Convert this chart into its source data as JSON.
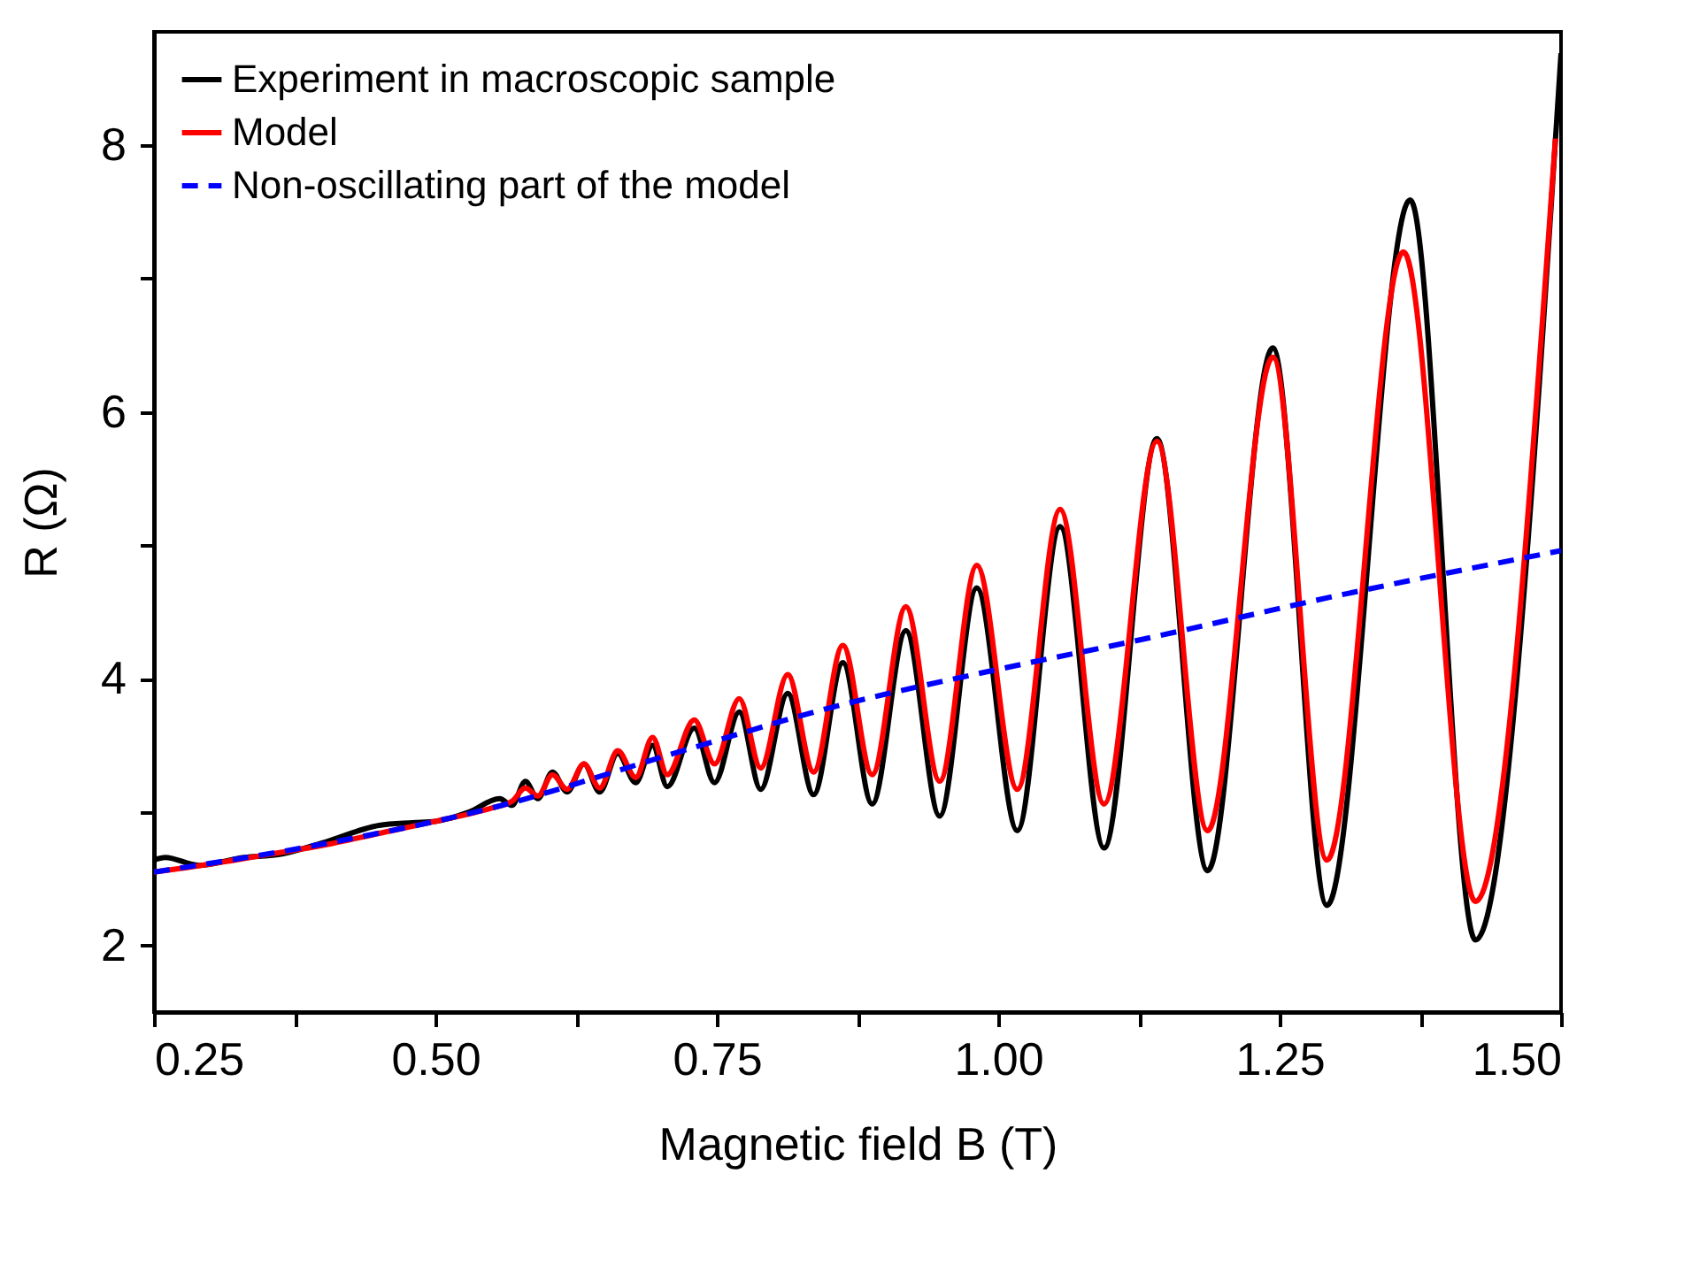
{
  "chart_data": {
    "type": "line",
    "xlabel": "Magnetic field B (T)",
    "ylabel": "R (Ω)",
    "xlim": [
      0.25,
      1.5
    ],
    "ylim": [
      1.5,
      8.85
    ],
    "xticks": [
      0.25,
      {
        "value": 0.375,
        "label": null
      },
      {
        "value": 0.5,
        "label": "0.50"
      },
      {
        "value": 0.625,
        "label": null
      },
      0.75,
      {
        "value": 0.875,
        "label": null
      },
      {
        "value": 1,
        "label": "1.00"
      },
      {
        "value": 1.125,
        "label": null
      },
      1.25,
      {
        "value": 1.375,
        "label": null
      },
      {
        "value": 1.5,
        "label": "1.50"
      }
    ],
    "yticks": [
      2,
      {
        "value": 3,
        "label": null
      },
      4,
      {
        "value": 5,
        "label": null
      },
      6,
      {
        "value": 7,
        "label": null
      },
      8
    ],
    "grid": false,
    "legend": "top left",
    "line_style": "solid",
    "series": [
      {
        "name": "Experiment in macroscopic sample",
        "color": "#000000",
        "x": [
          0.25,
          0.26,
          0.29,
          0.33,
          0.36,
          0.4,
          0.45,
          0.48,
          0.5,
          0.53,
          0.557,
          0.568,
          0.58,
          0.591,
          0.604,
          0.617,
          0.632,
          0.646,
          0.662,
          0.678,
          0.693,
          0.706,
          0.73,
          0.748,
          0.77,
          0.789,
          0.813,
          0.836,
          0.862,
          0.888,
          0.918,
          0.948,
          0.981,
          1.017,
          1.055,
          1.094,
          1.141,
          1.186,
          1.244,
          1.292,
          1.366,
          1.424,
          1.5
        ],
        "values": [
          2.64,
          2.66,
          2.6,
          2.66,
          2.68,
          2.77,
          2.9,
          2.92,
          2.93,
          3.0,
          3.1,
          3.05,
          3.23,
          3.1,
          3.3,
          3.15,
          3.36,
          3.15,
          3.44,
          3.22,
          3.5,
          3.19,
          3.63,
          3.22,
          3.75,
          3.17,
          3.89,
          3.13,
          4.12,
          3.06,
          4.36,
          2.97,
          4.68,
          2.86,
          5.14,
          2.73,
          5.8,
          2.56,
          6.48,
          2.3,
          7.59,
          2.04,
          8.69
        ]
      },
      {
        "name": "Model",
        "color": "#ff0000",
        "x": [
          0.25,
          0.3,
          0.35,
          0.4,
          0.45,
          0.5,
          0.55,
          0.568,
          0.58,
          0.591,
          0.604,
          0.617,
          0.632,
          0.646,
          0.662,
          0.678,
          0.693,
          0.706,
          0.73,
          0.748,
          0.77,
          0.789,
          0.813,
          0.836,
          0.862,
          0.888,
          0.918,
          0.948,
          0.981,
          1.017,
          1.055,
          1.094,
          1.141,
          1.186,
          1.244,
          1.292,
          1.36,
          1.424,
          1.495
        ],
        "values": [
          2.55,
          2.61,
          2.68,
          2.75,
          2.84,
          2.93,
          3.03,
          3.08,
          3.18,
          3.12,
          3.28,
          3.17,
          3.36,
          3.18,
          3.46,
          3.26,
          3.56,
          3.28,
          3.69,
          3.36,
          3.85,
          3.33,
          4.03,
          3.3,
          4.25,
          3.28,
          4.54,
          3.23,
          4.85,
          3.17,
          5.27,
          3.06,
          5.78,
          2.86,
          6.41,
          2.64,
          7.2,
          2.33,
          8.05
        ]
      },
      {
        "name": "Non-oscillating part of the model",
        "color": "#0000ff",
        "line_style": "dashed",
        "x": [
          0.25,
          0.4,
          0.55,
          0.72,
          0.85,
          1.0,
          1.12,
          1.3,
          1.5
        ],
        "values": [
          2.55,
          2.76,
          3.03,
          3.46,
          3.78,
          4.07,
          4.28,
          4.62,
          4.96
        ]
      }
    ]
  }
}
